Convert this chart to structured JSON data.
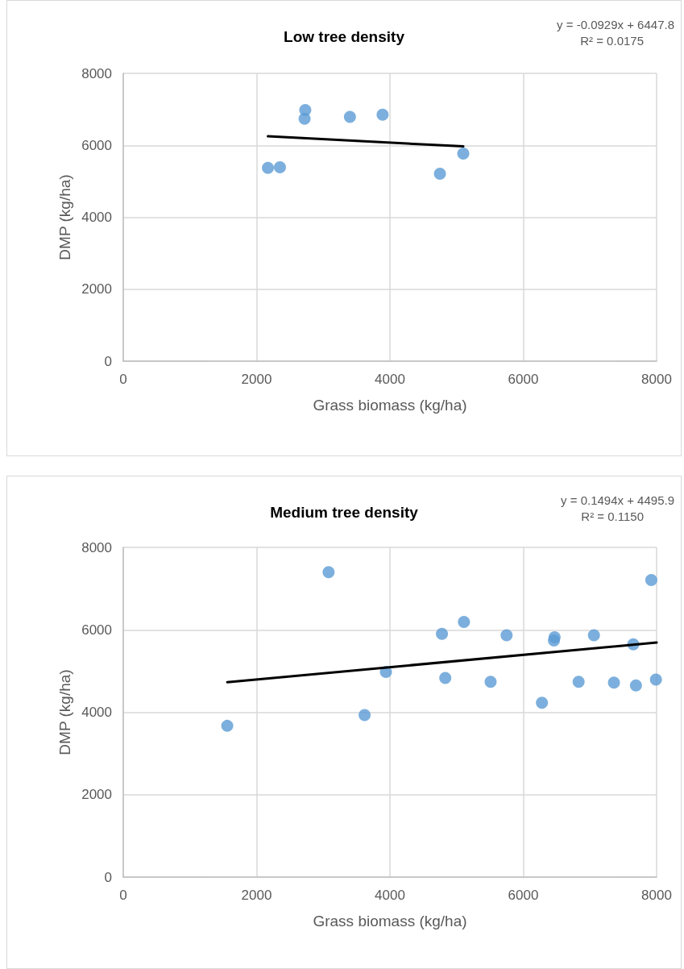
{
  "chart_data": [
    {
      "type": "scatter",
      "title": "Low tree density",
      "xlabel": "Grass biomass (kg/ha)",
      "ylabel": "DMP (kg/ha)",
      "annotations": [
        "y = -0.0929x + 6447.8",
        "R² = 0.0175"
      ],
      "series": [
        {
          "color": "#5b9bd5",
          "marker": "circle",
          "x": [
            2170,
            2350,
            2720,
            2730,
            3400,
            3890,
            4750,
            5100
          ],
          "values": [
            5370,
            5390,
            6740,
            6980,
            6790,
            6850,
            5210,
            5770
          ]
        },
        {
          "type": "line",
          "color": "#000000",
          "marker": "none",
          "x": [
            2170,
            5100
          ],
          "values": [
            6250,
            5970
          ]
        }
      ],
      "xlim": [
        0,
        8000
      ],
      "xticks": [
        0,
        2000,
        4000,
        6000,
        8000
      ],
      "ylim": [
        0,
        8000
      ],
      "yticks": [
        0,
        2000,
        4000,
        6000,
        8000
      ],
      "grid": true
    },
    {
      "type": "scatter",
      "title": "Medium tree density",
      "xlabel": "Grass biomass (kg/ha)",
      "ylabel": "DMP (kg/ha)",
      "annotations": [
        "y = 0.1494x + 4495.9",
        "R² = 0.1150"
      ],
      "series": [
        {
          "color": "#5b9bd5",
          "marker": "circle",
          "x": [
            1560,
            3080,
            3620,
            3940,
            4780,
            4830,
            5110,
            5510,
            5750,
            6280,
            6470,
            6460,
            6830,
            7060,
            7360,
            7650,
            7690,
            7920,
            7990
          ],
          "values": [
            3670,
            7400,
            3930,
            4980,
            5900,
            4830,
            6190,
            4740,
            5870,
            4230,
            5820,
            5740,
            4740,
            5870,
            4720,
            5650,
            4650,
            7210,
            4790
          ]
        },
        {
          "type": "line",
          "color": "#000000",
          "marker": "none",
          "x": [
            1560,
            8000
          ],
          "values": [
            4730,
            5690
          ]
        }
      ],
      "xlim": [
        0,
        8000
      ],
      "xticks": [
        0,
        2000,
        4000,
        6000,
        8000
      ],
      "ylim": [
        0,
        8000
      ],
      "yticks": [
        0,
        2000,
        4000,
        6000,
        8000
      ],
      "grid": true
    }
  ]
}
